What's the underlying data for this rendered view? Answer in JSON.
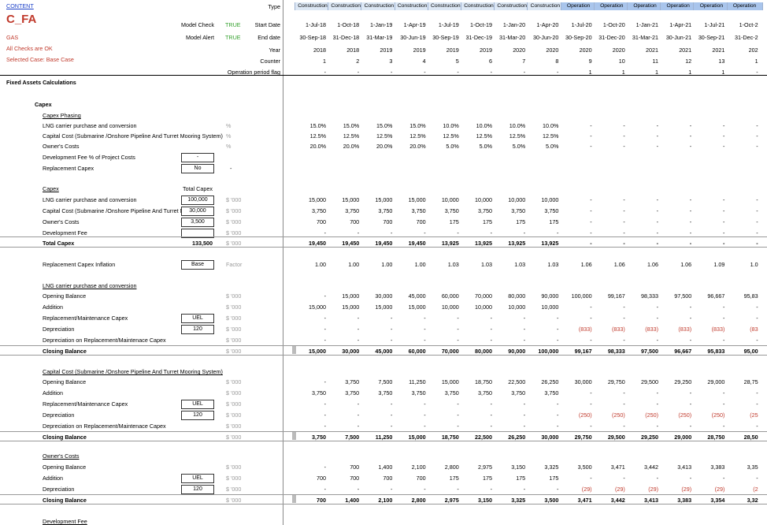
{
  "header": {
    "content_link": "CONTENT",
    "sheet_code": "C_FA",
    "company": "GAS",
    "checks_ok": "All Checks are OK",
    "selected_case": "Selected Case: Base Case",
    "model_check_label": "Model Check",
    "model_check_value": "TRUE",
    "model_alert_label": "Model Alert",
    "model_alert_value": "TRUE",
    "timeline_labels": [
      "Type",
      "Start Date",
      "End date",
      "Year",
      "Counter",
      "Operation period flag"
    ],
    "columns": [
      {
        "type": "Construction",
        "start": "1-Jul-18",
        "end": "30-Sep-18",
        "year": "2018",
        "counter": "1",
        "opflag": "-"
      },
      {
        "type": "Construction",
        "start": "1-Oct-18",
        "end": "31-Dec-18",
        "year": "2018",
        "counter": "2",
        "opflag": "-"
      },
      {
        "type": "Construction",
        "start": "1-Jan-19",
        "end": "31-Mar-19",
        "year": "2019",
        "counter": "3",
        "opflag": "-"
      },
      {
        "type": "Construction",
        "start": "1-Apr-19",
        "end": "30-Jun-19",
        "year": "2019",
        "counter": "4",
        "opflag": "-"
      },
      {
        "type": "Construction",
        "start": "1-Jul-19",
        "end": "30-Sep-19",
        "year": "2019",
        "counter": "5",
        "opflag": "-"
      },
      {
        "type": "Construction",
        "start": "1-Oct-19",
        "end": "31-Dec-19",
        "year": "2019",
        "counter": "6",
        "opflag": "-"
      },
      {
        "type": "Construction",
        "start": "1-Jan-20",
        "end": "31-Mar-20",
        "year": "2020",
        "counter": "7",
        "opflag": "-"
      },
      {
        "type": "Construction",
        "start": "1-Apr-20",
        "end": "30-Jun-20",
        "year": "2020",
        "counter": "8",
        "opflag": "-"
      },
      {
        "type": "Operation",
        "start": "1-Jul-20",
        "end": "30-Sep-20",
        "year": "2020",
        "counter": "9",
        "opflag": "1"
      },
      {
        "type": "Operation",
        "start": "1-Oct-20",
        "end": "31-Dec-20",
        "year": "2020",
        "counter": "10",
        "opflag": "1"
      },
      {
        "type": "Operation",
        "start": "1-Jan-21",
        "end": "31-Mar-21",
        "year": "2021",
        "counter": "11",
        "opflag": "1"
      },
      {
        "type": "Operation",
        "start": "1-Apr-21",
        "end": "30-Jun-21",
        "year": "2021",
        "counter": "12",
        "opflag": "1"
      },
      {
        "type": "Operation",
        "start": "1-Jul-21",
        "end": "30-Sep-21",
        "year": "2021",
        "counter": "13",
        "opflag": "1"
      },
      {
        "type": "Operation",
        "start": "1-Oct-2",
        "end": "31-Dec-2",
        "year": "202",
        "counter": "1",
        "opflag": "-"
      }
    ]
  },
  "main": {
    "title": "Fixed Assets Calculations",
    "capex_title": "Capex",
    "phasing_title": "Capex Phasing",
    "phasing_rows": [
      {
        "label": "LNG carrier purchase and conversion",
        "unit": "%",
        "values": [
          "15.0%",
          "15.0%",
          "15.0%",
          "15.0%",
          "10.0%",
          "10.0%",
          "10.0%",
          "10.0%",
          "-",
          "-",
          "-",
          "-",
          "-",
          "-"
        ]
      },
      {
        "label": "Capital Cost (Submarine /Onshore Pipeline And Turret Mooring System)",
        "unit": "%",
        "values": [
          "12.5%",
          "12.5%",
          "12.5%",
          "12.5%",
          "12.5%",
          "12.5%",
          "12.5%",
          "12.5%",
          "-",
          "-",
          "-",
          "-",
          "-",
          "-"
        ]
      },
      {
        "label": "Owner's Costs",
        "unit": "%",
        "values": [
          "20.0%",
          "20.0%",
          "20.0%",
          "20.0%",
          "5.0%",
          "5.0%",
          "5.0%",
          "5.0%",
          "-",
          "-",
          "-",
          "-",
          "-",
          "-"
        ]
      }
    ],
    "dev_fee_label": "Development Fee % of Project Costs",
    "dev_fee_value": "-",
    "replacement_label": "Replacement Capex",
    "replacement_value": "No",
    "replacement_dash": "-",
    "capex_sub_title": "Capex",
    "total_capex_header": "Total Capex",
    "capex_rows": [
      {
        "label": "LNG carrier purchase and conversion",
        "total": "100,000",
        "unit": "$ '000",
        "values": [
          "15,000",
          "15,000",
          "15,000",
          "15,000",
          "10,000",
          "10,000",
          "10,000",
          "10,000",
          "-",
          "-",
          "-",
          "-",
          "-",
          "-"
        ]
      },
      {
        "label": "Capital Cost (Submarine /Onshore Pipeline And Turret Moo",
        "total": "30,000",
        "unit": "$ '000",
        "values": [
          "3,750",
          "3,750",
          "3,750",
          "3,750",
          "3,750",
          "3,750",
          "3,750",
          "3,750",
          "-",
          "-",
          "-",
          "-",
          "-",
          "-"
        ]
      },
      {
        "label": "Owner's Costs",
        "total": "3,500",
        "unit": "$ '000",
        "values": [
          "700",
          "700",
          "700",
          "700",
          "175",
          "175",
          "175",
          "175",
          "-",
          "-",
          "-",
          "-",
          "-",
          "-"
        ]
      },
      {
        "label": "Development Fee",
        "total": "",
        "unit": "$ '000",
        "values": [
          "-",
          "-",
          "-",
          "-",
          "-",
          "-",
          "-",
          "-",
          "-",
          "-",
          "-",
          "-",
          "-",
          "-"
        ]
      }
    ],
    "total_capex_label": "Total Capex",
    "total_capex_total": "133,500",
    "total_capex_unit": "$ '000",
    "total_capex_values": [
      "19,450",
      "19,450",
      "19,450",
      "19,450",
      "13,925",
      "13,925",
      "13,925",
      "13,925",
      "-",
      "-",
      "-",
      "-",
      "-",
      "-"
    ],
    "inflation_label": "Replacement Capex Inflation",
    "inflation_case": "Base",
    "inflation_unit": "Factor",
    "inflation_values": [
      "1.00",
      "1.00",
      "1.00",
      "1.00",
      "1.03",
      "1.03",
      "1.03",
      "1.03",
      "1.06",
      "1.06",
      "1.06",
      "1.06",
      "1.09",
      "1.0"
    ],
    "sections": [
      {
        "title": "LNG carrier purchase and conversion",
        "rows": [
          {
            "label": "Opening Balance",
            "unit": "$ '000",
            "values": [
              "-",
              "15,000",
              "30,000",
              "45,000",
              "60,000",
              "70,000",
              "80,000",
              "90,000",
              "100,000",
              "99,167",
              "98,333",
              "97,500",
              "96,667",
              "95,83"
            ]
          },
          {
            "label": "Addition",
            "unit": "$ '000",
            "values": [
              "15,000",
              "15,000",
              "15,000",
              "15,000",
              "10,000",
              "10,000",
              "10,000",
              "10,000",
              "-",
              "-",
              "-",
              "-",
              "-",
              "-"
            ]
          },
          {
            "label": "Replacement/Maintenance Capex",
            "box": "UEL",
            "unit": "$ '000",
            "values": [
              "-",
              "-",
              "-",
              "-",
              "-",
              "-",
              "-",
              "-",
              "-",
              "-",
              "-",
              "-",
              "-",
              "-"
            ]
          },
          {
            "label": "Depreciation",
            "box": "120",
            "unit": "$ '000",
            "red_from": 8,
            "values": [
              "-",
              "-",
              "-",
              "-",
              "-",
              "-",
              "-",
              "-",
              "(833)",
              "(833)",
              "(833)",
              "(833)",
              "(833)",
              "(83"
            ]
          },
          {
            "label": "Depreciation on Replacement/Maintenace Capex",
            "unit": "$ '000",
            "values": [
              "-",
              "-",
              "-",
              "-",
              "-",
              "-",
              "-",
              "-",
              "-",
              "-",
              "-",
              "-",
              "-",
              "-"
            ]
          }
        ],
        "closing": {
          "label": "Closing Balance",
          "unit": "$ '000",
          "values": [
            "15,000",
            "30,000",
            "45,000",
            "60,000",
            "70,000",
            "80,000",
            "90,000",
            "100,000",
            "99,167",
            "98,333",
            "97,500",
            "96,667",
            "95,833",
            "95,00"
          ]
        }
      },
      {
        "title": "Capital Cost (Submarine /Onshore Pipeline And Turret Mooring System)",
        "rows": [
          {
            "label": "Opening Balance",
            "unit": "$ '000",
            "values": [
              "-",
              "3,750",
              "7,500",
              "11,250",
              "15,000",
              "18,750",
              "22,500",
              "26,250",
              "30,000",
              "29,750",
              "29,500",
              "29,250",
              "29,000",
              "28,75"
            ]
          },
          {
            "label": "Addition",
            "unit": "$ '000",
            "values": [
              "3,750",
              "3,750",
              "3,750",
              "3,750",
              "3,750",
              "3,750",
              "3,750",
              "3,750",
              "-",
              "-",
              "-",
              "-",
              "-",
              "-"
            ]
          },
          {
            "label": "Replacement/Maintenance Capex",
            "box": "UEL",
            "unit": "$ '000",
            "values": [
              "-",
              "-",
              "-",
              "-",
              "-",
              "-",
              "-",
              "-",
              "-",
              "-",
              "-",
              "-",
              "-",
              "-"
            ]
          },
          {
            "label": "Depreciation",
            "box": "120",
            "unit": "$ '000",
            "red_from": 8,
            "values": [
              "-",
              "-",
              "-",
              "-",
              "-",
              "-",
              "-",
              "-",
              "(250)",
              "(250)",
              "(250)",
              "(250)",
              "(250)",
              "(25"
            ]
          },
          {
            "label": "Depreciation on Replacement/Maintenace Capex",
            "unit": "$ '000",
            "values": [
              "-",
              "-",
              "-",
              "-",
              "-",
              "-",
              "-",
              "-",
              "-",
              "-",
              "-",
              "-",
              "-",
              "-"
            ]
          }
        ],
        "closing": {
          "label": "Closing Balance",
          "unit": "$ '000",
          "values": [
            "3,750",
            "7,500",
            "11,250",
            "15,000",
            "18,750",
            "22,500",
            "26,250",
            "30,000",
            "29,750",
            "29,500",
            "29,250",
            "29,000",
            "28,750",
            "28,50"
          ]
        }
      },
      {
        "title": "Owner's Costs",
        "rows": [
          {
            "label": "Opening Balance",
            "unit": "$ '000",
            "values": [
              "-",
              "700",
              "1,400",
              "2,100",
              "2,800",
              "2,975",
              "3,150",
              "3,325",
              "3,500",
              "3,471",
              "3,442",
              "3,413",
              "3,383",
              "3,35"
            ]
          },
          {
            "label": "Addition",
            "box": "UEL",
            "unit": "$ '000",
            "values": [
              "700",
              "700",
              "700",
              "700",
              "175",
              "175",
              "175",
              "175",
              "-",
              "-",
              "-",
              "-",
              "-",
              "-"
            ]
          },
          {
            "label": "Depreciation",
            "box": "120",
            "unit": "$ '000",
            "red_from": 8,
            "values": [
              "-",
              "-",
              "-",
              "-",
              "-",
              "-",
              "-",
              "-",
              "(29)",
              "(29)",
              "(29)",
              "(29)",
              "(29)",
              "(2"
            ]
          }
        ],
        "closing": {
          "label": "Closing Balance",
          "unit": "$ '000",
          "values": [
            "700",
            "1,400",
            "2,100",
            "2,800",
            "2,975",
            "3,150",
            "3,325",
            "3,500",
            "3,471",
            "3,442",
            "3,413",
            "3,383",
            "3,354",
            "3,32"
          ]
        }
      }
    ],
    "next_section_title": "Development Fee"
  },
  "colors": {
    "red": "#c0392b",
    "green": "#33a02c",
    "construction_bg": "#dde8f5",
    "operation_bg": "#a9c5ec"
  }
}
